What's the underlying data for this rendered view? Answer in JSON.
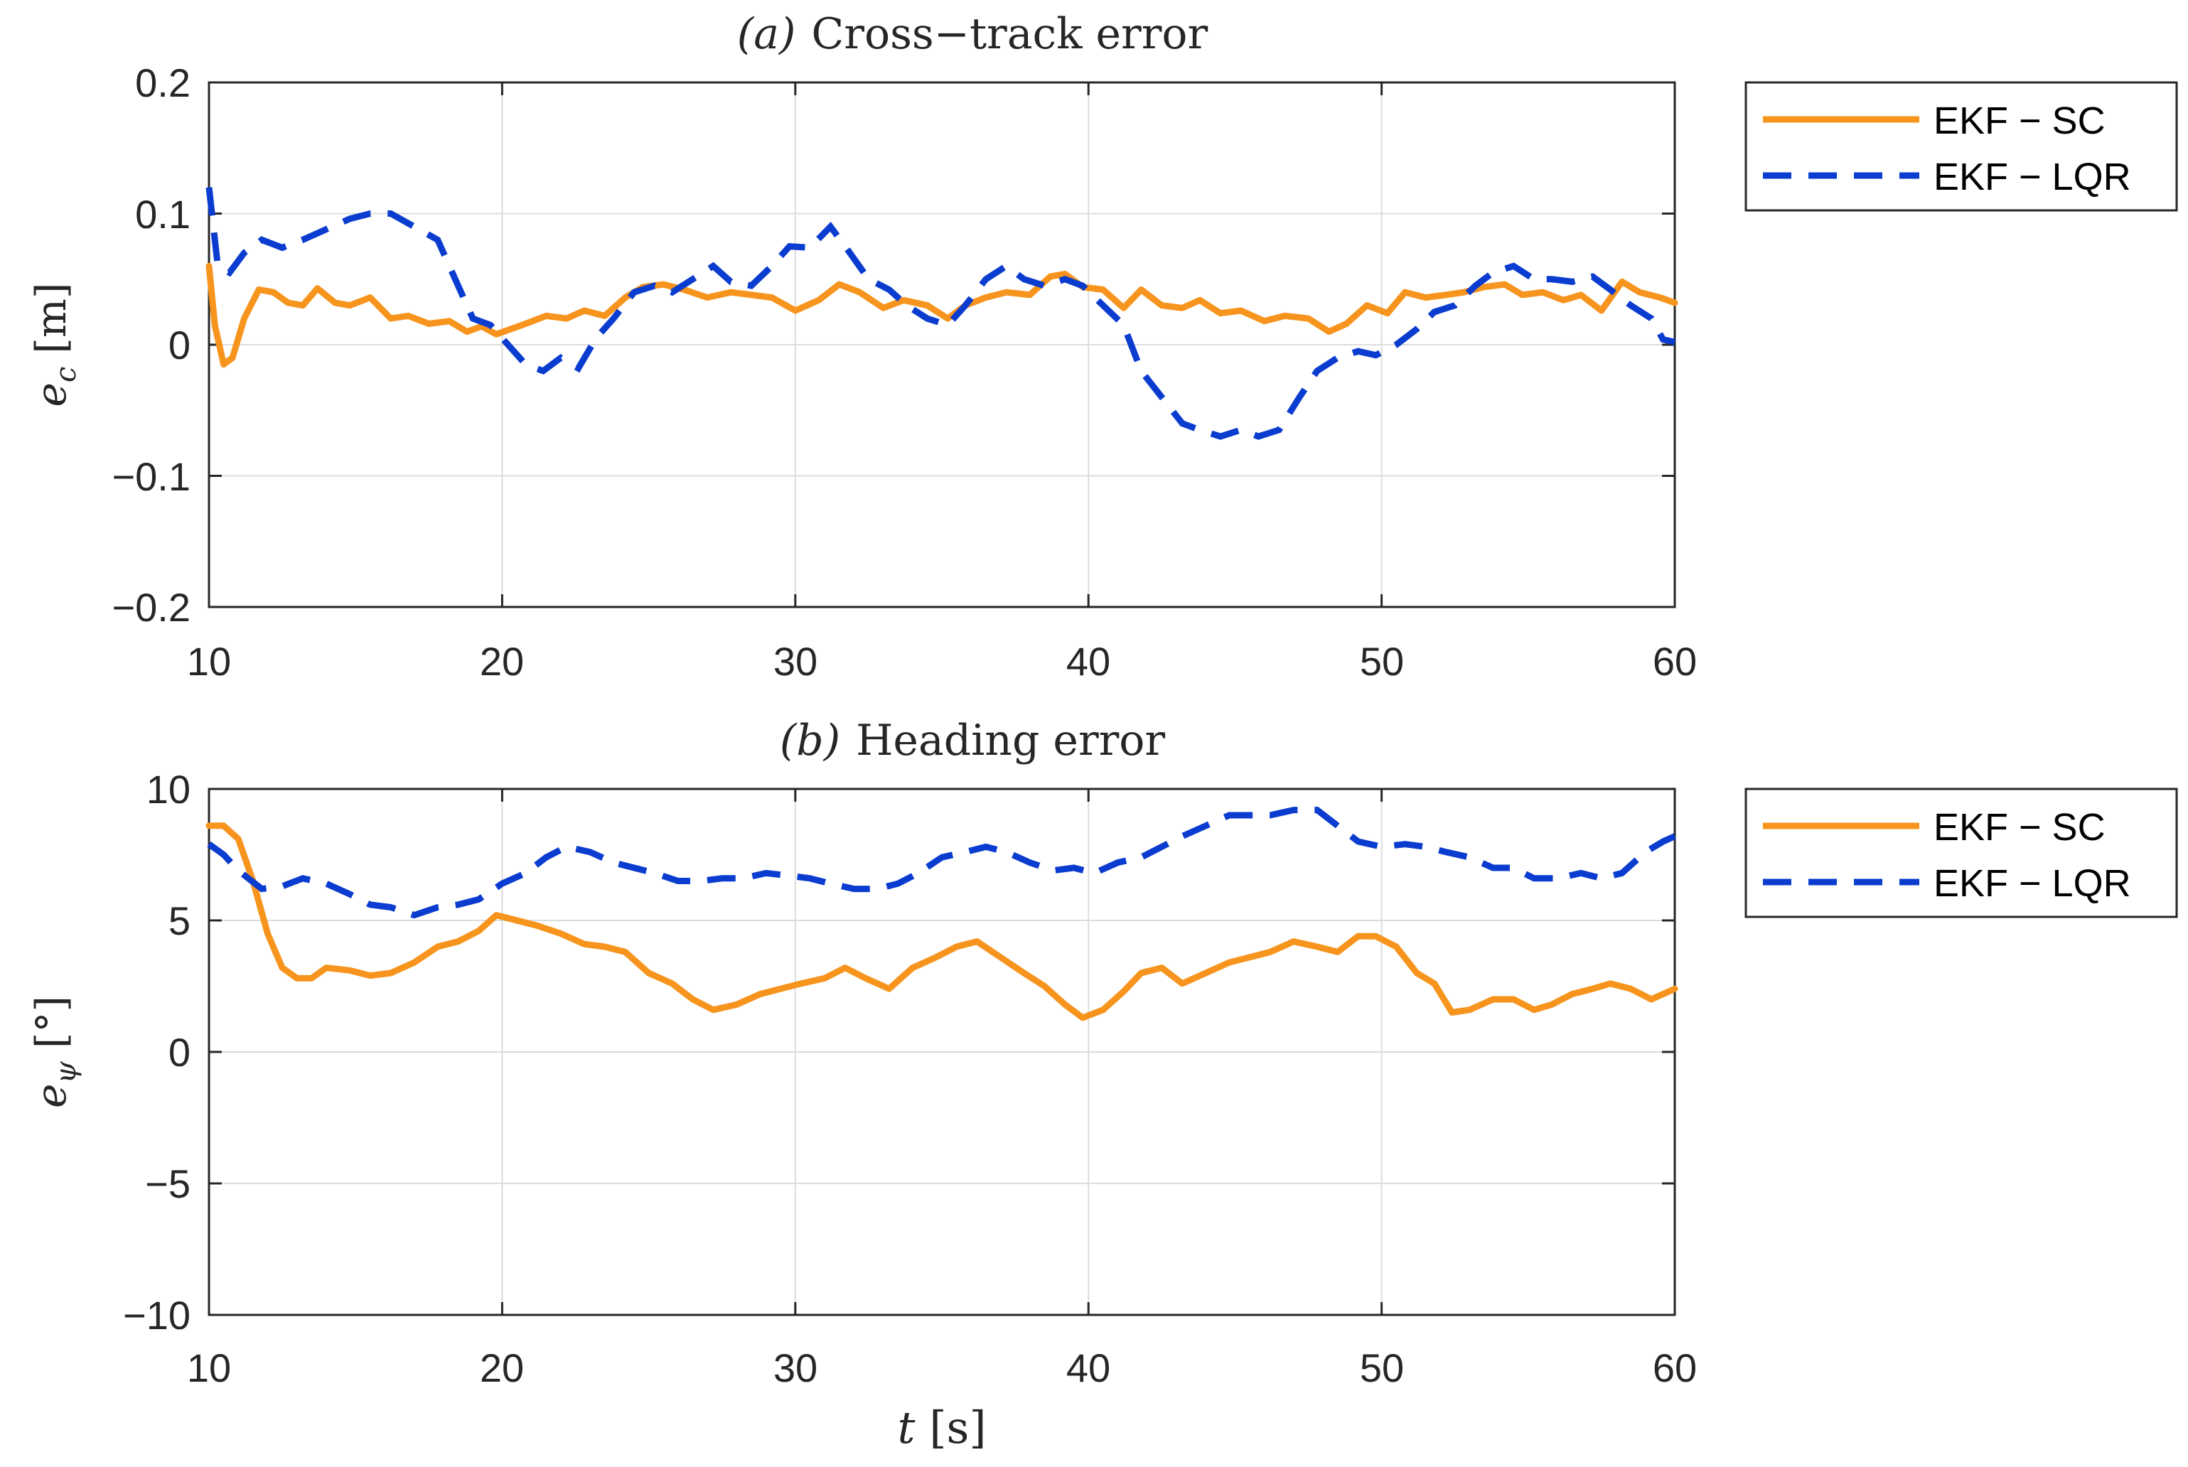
{
  "colors": {
    "sc": "#F7941D",
    "lqr": "#0A3CCF",
    "axis": "#262626",
    "grid": "#dcdcdc"
  },
  "chart_data": [
    {
      "type": "line",
      "title": {
        "label": "(a)",
        "text": "Cross−track error"
      },
      "ylabel": {
        "symbol": "e",
        "sub": "c",
        "unit": "[m]"
      },
      "xlabel": "",
      "xlim": [
        10,
        60
      ],
      "ylim": [
        -0.2,
        0.2
      ],
      "grid": true,
      "legend_position": "outside-top-right",
      "xticks": [
        10,
        20,
        30,
        40,
        50,
        60
      ],
      "xtick_labels": [
        "10",
        "20",
        "30",
        "40",
        "50",
        "60"
      ],
      "yticks": [
        0.2,
        0.1,
        0,
        -0.1,
        -0.2
      ],
      "ytick_labels": [
        "0.2",
        "0.1",
        "0",
        "−0.1",
        "−0.2"
      ],
      "series": [
        {
          "name": "EKF − SC",
          "style": "solid",
          "color": "#F7941D",
          "x": [
            10,
            10.2,
            10.5,
            10.8,
            11.2,
            11.7,
            12.2,
            12.7,
            13.2,
            13.7,
            14.3,
            14.8,
            15.5,
            16.2,
            16.8,
            17.5,
            18.2,
            18.8,
            19.3,
            19.8,
            20.3,
            20.8,
            21.5,
            22.2,
            22.8,
            23.5,
            24.2,
            24.8,
            25.5,
            26.2,
            27,
            27.8,
            28.5,
            29.2,
            30,
            30.8,
            31.5,
            32.2,
            33,
            33.7,
            34.5,
            35.2,
            35.8,
            36.5,
            37.2,
            38,
            38.7,
            39.2,
            39.8,
            40.5,
            41.2,
            41.8,
            42.5,
            43.2,
            43.8,
            44.5,
            45.2,
            46,
            46.7,
            47.5,
            48.2,
            48.8,
            49.5,
            50.2,
            50.8,
            51.5,
            52.2,
            52.8,
            53.5,
            54.2,
            54.8,
            55.5,
            56.2,
            56.8,
            57.5,
            58.2,
            58.8,
            59.5,
            60
          ],
          "y": [
            0.06,
            0.015,
            -0.015,
            -0.01,
            0.02,
            0.042,
            0.04,
            0.032,
            0.03,
            0.043,
            0.032,
            0.03,
            0.036,
            0.02,
            0.022,
            0.016,
            0.018,
            0.01,
            0.014,
            0.008,
            0.012,
            0.016,
            0.022,
            0.02,
            0.026,
            0.022,
            0.036,
            0.044,
            0.046,
            0.042,
            0.036,
            0.04,
            0.038,
            0.036,
            0.026,
            0.034,
            0.046,
            0.04,
            0.028,
            0.034,
            0.03,
            0.02,
            0.03,
            0.036,
            0.04,
            0.038,
            0.052,
            0.054,
            0.044,
            0.042,
            0.028,
            0.042,
            0.03,
            0.028,
            0.034,
            0.024,
            0.026,
            0.018,
            0.022,
            0.02,
            0.01,
            0.016,
            0.03,
            0.024,
            0.04,
            0.036,
            0.038,
            0.04,
            0.044,
            0.046,
            0.038,
            0.04,
            0.034,
            0.038,
            0.026,
            0.048,
            0.04,
            0.036,
            0.032
          ]
        },
        {
          "name": "EKF − LQR",
          "style": "dashed",
          "color": "#0A3CCF",
          "x": [
            10,
            10.3,
            10.7,
            11.2,
            11.8,
            12.5,
            13.2,
            14,
            14.8,
            15.5,
            16.2,
            17,
            17.8,
            18.4,
            19,
            19.6,
            20.2,
            20.8,
            21.4,
            22,
            22.6,
            23.2,
            23.8,
            24.5,
            25.2,
            25.8,
            26.5,
            27.2,
            27.8,
            28.5,
            29.2,
            29.8,
            30.5,
            31.2,
            31.8,
            32.5,
            33.2,
            33.8,
            34.5,
            35.2,
            35.8,
            36.5,
            37.2,
            37.8,
            38.5,
            39.2,
            39.8,
            40.5,
            41.2,
            41.8,
            42.5,
            43.2,
            43.8,
            44.5,
            45.2,
            45.8,
            46.5,
            47.2,
            47.8,
            48.5,
            49.2,
            49.8,
            50.5,
            51.2,
            51.8,
            52.5,
            53.2,
            53.8,
            54.5,
            55.2,
            55.8,
            56.5,
            57.2,
            57.8,
            58.5,
            59.2,
            59.6,
            60
          ],
          "y": [
            0.12,
            0.06,
            0.055,
            0.07,
            0.08,
            0.074,
            0.08,
            0.088,
            0.096,
            0.1,
            0.1,
            0.09,
            0.08,
            0.05,
            0.02,
            0.015,
            0.0,
            -0.015,
            -0.02,
            -0.01,
            -0.018,
            0.005,
            0.02,
            0.04,
            0.045,
            0.04,
            0.05,
            0.06,
            0.048,
            0.045,
            0.06,
            0.075,
            0.074,
            0.09,
            0.072,
            0.05,
            0.042,
            0.03,
            0.02,
            0.015,
            0.03,
            0.05,
            0.06,
            0.05,
            0.045,
            0.05,
            0.045,
            0.03,
            0.015,
            -0.02,
            -0.04,
            -0.06,
            -0.065,
            -0.07,
            -0.065,
            -0.07,
            -0.065,
            -0.04,
            -0.02,
            -0.01,
            -0.005,
            -0.008,
            0.0,
            0.012,
            0.025,
            0.03,
            0.045,
            0.055,
            0.06,
            0.05,
            0.05,
            0.048,
            0.052,
            0.042,
            0.03,
            0.02,
            0.004,
            0.002
          ]
        }
      ]
    },
    {
      "type": "line",
      "title": {
        "label": "(b)",
        "text": "Heading error"
      },
      "ylabel": {
        "symbol": "e",
        "sub": "ψ",
        "unit": "[°]"
      },
      "xlabel": {
        "symbol": "t",
        "unit": "[s]"
      },
      "xlim": [
        10,
        60
      ],
      "ylim": [
        -10,
        10
      ],
      "grid": true,
      "legend_position": "outside-top-right",
      "xticks": [
        10,
        20,
        30,
        40,
        50,
        60
      ],
      "xtick_labels": [
        "10",
        "20",
        "30",
        "40",
        "50",
        "60"
      ],
      "yticks": [
        10,
        5,
        0,
        -5,
        -10
      ],
      "ytick_labels": [
        "10",
        "5",
        "0",
        "−5",
        "−10"
      ],
      "series": [
        {
          "name": "EKF − SC",
          "style": "solid",
          "color": "#F7941D",
          "x": [
            10,
            10.5,
            11,
            11.5,
            12,
            12.5,
            13,
            13.5,
            14,
            14.8,
            15.5,
            16.2,
            17,
            17.8,
            18.5,
            19.2,
            19.8,
            20.5,
            21.2,
            22,
            22.8,
            23.5,
            24.2,
            25,
            25.8,
            26.5,
            27.2,
            28,
            28.8,
            29.5,
            30.2,
            31,
            31.7,
            32.4,
            33.2,
            34,
            34.8,
            35.5,
            36.2,
            37,
            37.8,
            38.5,
            39.2,
            39.8,
            40.5,
            41.2,
            41.8,
            42.5,
            43.2,
            44,
            44.8,
            45.5,
            46.2,
            47,
            47.8,
            48.5,
            49.2,
            49.8,
            50.5,
            51.2,
            51.8,
            52.4,
            53,
            53.8,
            54.5,
            55.2,
            55.8,
            56.5,
            57.2,
            57.8,
            58.5,
            59.2,
            59.6,
            60
          ],
          "y": [
            8.6,
            8.6,
            8.1,
            6.5,
            4.5,
            3.2,
            2.8,
            2.8,
            3.2,
            3.1,
            2.9,
            3.0,
            3.4,
            4.0,
            4.2,
            4.6,
            5.2,
            5.0,
            4.8,
            4.5,
            4.1,
            4.0,
            3.8,
            3.0,
            2.6,
            2.0,
            1.6,
            1.8,
            2.2,
            2.4,
            2.6,
            2.8,
            3.2,
            2.8,
            2.4,
            3.2,
            3.6,
            4.0,
            4.2,
            3.6,
            3.0,
            2.5,
            1.8,
            1.3,
            1.6,
            2.3,
            3.0,
            3.2,
            2.6,
            3.0,
            3.4,
            3.6,
            3.8,
            4.2,
            4.0,
            3.8,
            4.4,
            4.4,
            4.0,
            3.0,
            2.6,
            1.5,
            1.6,
            2.0,
            2.0,
            1.6,
            1.8,
            2.2,
            2.4,
            2.6,
            2.4,
            2.0,
            2.2,
            2.4
          ]
        },
        {
          "name": "EKF − LQR",
          "style": "dashed",
          "color": "#0A3CCF",
          "x": [
            10,
            10.5,
            11,
            11.8,
            12.5,
            13.2,
            14,
            14.8,
            15.5,
            16.2,
            17,
            17.8,
            18.5,
            19.2,
            20,
            20.8,
            21.5,
            22.2,
            23,
            23.8,
            24.5,
            25.2,
            26,
            26.8,
            27.5,
            28.2,
            29,
            29.8,
            30.5,
            31.2,
            32,
            32.8,
            33.5,
            34.2,
            35,
            35.8,
            36.5,
            37.2,
            38,
            38.8,
            39.5,
            40.2,
            41,
            41.8,
            42.5,
            43.2,
            44,
            44.8,
            45.5,
            46.2,
            47,
            47.8,
            48.5,
            49.2,
            50,
            50.8,
            51.5,
            52.2,
            53,
            53.8,
            54.5,
            55.2,
            56,
            56.8,
            57.5,
            58.2,
            59,
            59.6,
            60
          ],
          "y": [
            7.9,
            7.5,
            6.9,
            6.2,
            6.3,
            6.6,
            6.4,
            6.0,
            5.6,
            5.5,
            5.2,
            5.5,
            5.6,
            5.8,
            6.4,
            6.8,
            7.4,
            7.8,
            7.6,
            7.2,
            7.0,
            6.8,
            6.5,
            6.5,
            6.6,
            6.6,
            6.8,
            6.7,
            6.6,
            6.4,
            6.2,
            6.2,
            6.4,
            6.8,
            7.4,
            7.6,
            7.8,
            7.6,
            7.2,
            6.9,
            7.0,
            6.8,
            7.2,
            7.4,
            7.8,
            8.2,
            8.6,
            9.0,
            9.0,
            9.0,
            9.2,
            9.2,
            8.6,
            8.0,
            7.8,
            7.9,
            7.8,
            7.6,
            7.4,
            7.0,
            7.0,
            6.6,
            6.6,
            6.8,
            6.6,
            6.8,
            7.6,
            8.0,
            8.2
          ]
        }
      ]
    }
  ]
}
